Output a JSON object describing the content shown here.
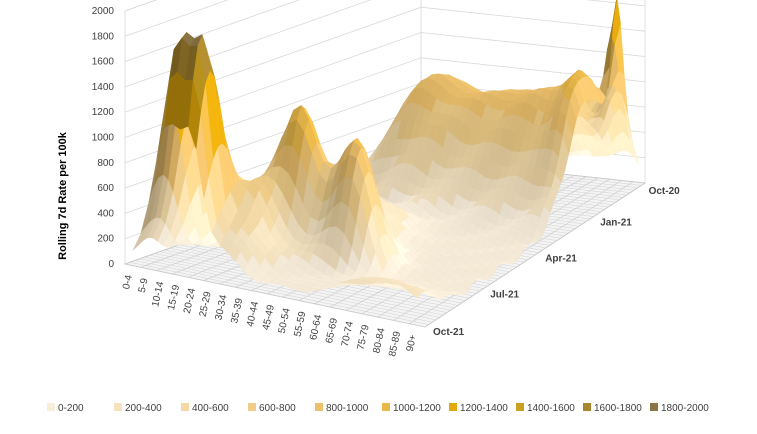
{
  "chart_data": {
    "type": "surface",
    "title": "",
    "ylabel": "Rolling 7d Rate per 100k",
    "zlim": [
      0,
      2000
    ],
    "z_ticks": [
      "0",
      "200",
      "400",
      "600",
      "800",
      "1000",
      "1200",
      "1400",
      "1600",
      "1800",
      "2000"
    ],
    "age_groups": [
      "0-4",
      "5-9",
      "10-14",
      "15-19",
      "20-24",
      "25-29",
      "30-34",
      "35-39",
      "40-44",
      "45-49",
      "50-54",
      "55-59",
      "60-64",
      "65-69",
      "70-74",
      "75-79",
      "80-84",
      "85-89",
      "90+"
    ],
    "date_labels": [
      "Oct-20",
      "Jan-21",
      "Apr-21",
      "Jul-21",
      "Oct-21"
    ],
    "legend": [
      "0-200",
      "200-400",
      "400-600",
      "600-800",
      "800-1000",
      "1000-1200",
      "1200-1400",
      "1400-1600",
      "1600-1800",
      "1800-2000"
    ],
    "legend_colors": [
      "#f8edd9",
      "#f5e3c0",
      "#f2d9a6",
      "#efcd88",
      "#ecc06c",
      "#e9b84a",
      "#e3a90c",
      "#c9a020",
      "#a8862f",
      "#8c7545"
    ],
    "approx_peaks": [
      {
        "age": "0-4",
        "date": "Oct-21",
        "value": 250
      },
      {
        "age": "10-14",
        "date": "Oct-21",
        "value": 1850
      },
      {
        "age": "20-24",
        "date": "Oct-21",
        "value": 1500
      },
      {
        "age": "35-39",
        "date": "Jul-21",
        "value": 850
      },
      {
        "age": "50-54",
        "date": "Jul-21",
        "value": 1000
      },
      {
        "age": "20-24",
        "date": "Jan-21",
        "value": 1050
      },
      {
        "age": "85-89",
        "date": "Jan-21",
        "value": 1000
      },
      {
        "age": "90+",
        "date": "Oct-20",
        "value": 1300
      }
    ]
  }
}
